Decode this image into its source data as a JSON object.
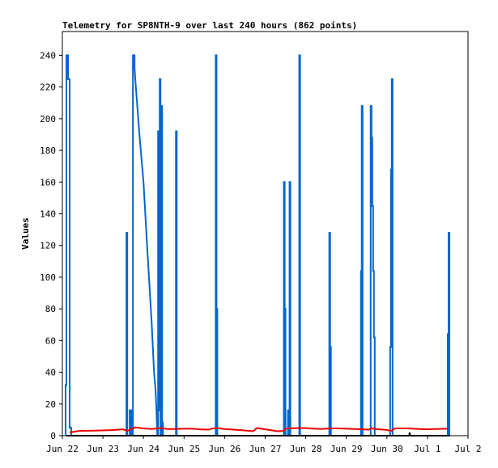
{
  "chart_data": {
    "type": "line",
    "title": "Telemetry for SP8NTH-9 over last 240 hours (862 points)",
    "ylabel": "Values",
    "xlabel": "",
    "x_range": [
      "Jun 22",
      "Jul 2"
    ],
    "ylim": [
      0,
      255
    ],
    "grid": false,
    "legend": "none",
    "x_ticks": [
      "Jun 22",
      "Jun 23",
      "Jun 24",
      "Jun 25",
      "Jun 26",
      "Jun 27",
      "Jun 28",
      "Jun 29",
      "Jun 30",
      "Jul 1",
      "Jul 2"
    ],
    "y_ticks": [
      0,
      20,
      40,
      60,
      80,
      100,
      120,
      140,
      160,
      180,
      200,
      220,
      240
    ],
    "colors": {
      "blue_series": "#0066cc",
      "red_series": "#ee0000",
      "black_series": "#000000"
    },
    "series": [
      {
        "color": "#0066cc",
        "points": [
          [
            0.08,
            0
          ],
          [
            0.08,
            32
          ],
          [
            0.1,
            32
          ],
          [
            0.1,
            240
          ],
          [
            0.14,
            240
          ],
          [
            0.14,
            225
          ],
          [
            0.18,
            225
          ],
          [
            0.18,
            5
          ],
          [
            0.22,
            5
          ],
          [
            0.22,
            0
          ],
          [
            1.58,
            0
          ],
          [
            1.58,
            128
          ],
          [
            1.6,
            128
          ],
          [
            1.6,
            0
          ],
          [
            1.66,
            0
          ],
          [
            1.66,
            16
          ],
          [
            1.7,
            16
          ],
          [
            1.7,
            0
          ],
          [
            1.74,
            0
          ],
          [
            1.74,
            240
          ],
          [
            1.78,
            240
          ],
          [
            1.78,
            232
          ],
          [
            1.8,
            224
          ],
          [
            1.9,
            190
          ],
          [
            2.0,
            160
          ],
          [
            2.1,
            115
          ],
          [
            2.2,
            72
          ],
          [
            2.26,
            40
          ],
          [
            2.3,
            28
          ],
          [
            2.32,
            16
          ],
          [
            2.34,
            0
          ],
          [
            2.36,
            0
          ],
          [
            2.36,
            192
          ],
          [
            2.38,
            192
          ],
          [
            2.38,
            16
          ],
          [
            2.4,
            16
          ],
          [
            2.4,
            225
          ],
          [
            2.42,
            225
          ],
          [
            2.42,
            0
          ],
          [
            2.44,
            0
          ],
          [
            2.44,
            208
          ],
          [
            2.46,
            208
          ],
          [
            2.46,
            8
          ],
          [
            2.48,
            8
          ],
          [
            2.48,
            0
          ],
          [
            2.8,
            0
          ],
          [
            2.8,
            192
          ],
          [
            2.82,
            192
          ],
          [
            2.82,
            0
          ],
          [
            3.78,
            0
          ],
          [
            3.78,
            240
          ],
          [
            3.8,
            240
          ],
          [
            3.8,
            80
          ],
          [
            3.82,
            80
          ],
          [
            3.82,
            0
          ],
          [
            5.46,
            0
          ],
          [
            5.46,
            160
          ],
          [
            5.48,
            160
          ],
          [
            5.48,
            80
          ],
          [
            5.5,
            80
          ],
          [
            5.5,
            0
          ],
          [
            5.56,
            0
          ],
          [
            5.56,
            16
          ],
          [
            5.58,
            16
          ],
          [
            5.58,
            0
          ],
          [
            5.6,
            0
          ],
          [
            5.6,
            160
          ],
          [
            5.62,
            160
          ],
          [
            5.62,
            0
          ],
          [
            5.84,
            0
          ],
          [
            5.84,
            240
          ],
          [
            5.86,
            240
          ],
          [
            5.86,
            0
          ],
          [
            6.58,
            0
          ],
          [
            6.58,
            128
          ],
          [
            6.6,
            128
          ],
          [
            6.6,
            56
          ],
          [
            6.62,
            56
          ],
          [
            6.62,
            0
          ],
          [
            7.36,
            0
          ],
          [
            7.36,
            104
          ],
          [
            7.38,
            104
          ],
          [
            7.38,
            208
          ],
          [
            7.4,
            208
          ],
          [
            7.4,
            0
          ],
          [
            7.6,
            0
          ],
          [
            7.6,
            208
          ],
          [
            7.62,
            208
          ],
          [
            7.62,
            188
          ],
          [
            7.64,
            188
          ],
          [
            7.64,
            145
          ],
          [
            7.66,
            145
          ],
          [
            7.66,
            104
          ],
          [
            7.68,
            104
          ],
          [
            7.68,
            62
          ],
          [
            7.7,
            62
          ],
          [
            7.7,
            0
          ],
          [
            8.08,
            0
          ],
          [
            8.08,
            56
          ],
          [
            8.1,
            56
          ],
          [
            8.1,
            168
          ],
          [
            8.12,
            168
          ],
          [
            8.12,
            225
          ],
          [
            8.14,
            225
          ],
          [
            8.14,
            0
          ],
          [
            9.5,
            0
          ],
          [
            9.5,
            64
          ],
          [
            9.52,
            64
          ],
          [
            9.52,
            128
          ],
          [
            9.54,
            128
          ],
          [
            9.54,
            0
          ]
        ]
      },
      {
        "color": "#ee0000",
        "points": [
          [
            0.18,
            2
          ],
          [
            0.4,
            3
          ],
          [
            0.8,
            3.2
          ],
          [
            1.2,
            3.5
          ],
          [
            1.5,
            4
          ],
          [
            1.6,
            3
          ],
          [
            1.7,
            4.2
          ],
          [
            1.8,
            5.2
          ],
          [
            2.0,
            4.6
          ],
          [
            2.2,
            4.2
          ],
          [
            2.4,
            4.8
          ],
          [
            2.6,
            4.2
          ],
          [
            2.8,
            4.2
          ],
          [
            3.0,
            4.4
          ],
          [
            3.2,
            4.4
          ],
          [
            3.4,
            4.0
          ],
          [
            3.6,
            3.8
          ],
          [
            3.7,
            4.5
          ],
          [
            3.8,
            4.8
          ],
          [
            4.0,
            4.2
          ],
          [
            4.4,
            3.5
          ],
          [
            4.7,
            2.8
          ],
          [
            4.8,
            4.8
          ],
          [
            5.0,
            4.0
          ],
          [
            5.3,
            2.8
          ],
          [
            5.45,
            3.0
          ],
          [
            5.5,
            4.5
          ],
          [
            5.6,
            4.6
          ],
          [
            5.8,
            4.8
          ],
          [
            6.0,
            4.8
          ],
          [
            6.2,
            4.4
          ],
          [
            6.4,
            4.2
          ],
          [
            6.6,
            4.6
          ],
          [
            6.8,
            4.6
          ],
          [
            7.0,
            4.4
          ],
          [
            7.2,
            4.2
          ],
          [
            7.4,
            4.0
          ],
          [
            7.55,
            3.8
          ],
          [
            7.6,
            4.6
          ],
          [
            7.8,
            4.0
          ],
          [
            8.0,
            3.6
          ],
          [
            8.1,
            3.0
          ],
          [
            8.2,
            4.6
          ],
          [
            8.5,
            4.6
          ],
          [
            8.8,
            4.2
          ],
          [
            9.0,
            4.0
          ],
          [
            9.2,
            4.2
          ],
          [
            9.5,
            4.4
          ]
        ]
      },
      {
        "color": "#000000",
        "points": [
          [
            0.1,
            0
          ],
          [
            8.55,
            0
          ],
          [
            8.56,
            2
          ],
          [
            8.57,
            0
          ],
          [
            9.55,
            0
          ]
        ]
      }
    ]
  }
}
